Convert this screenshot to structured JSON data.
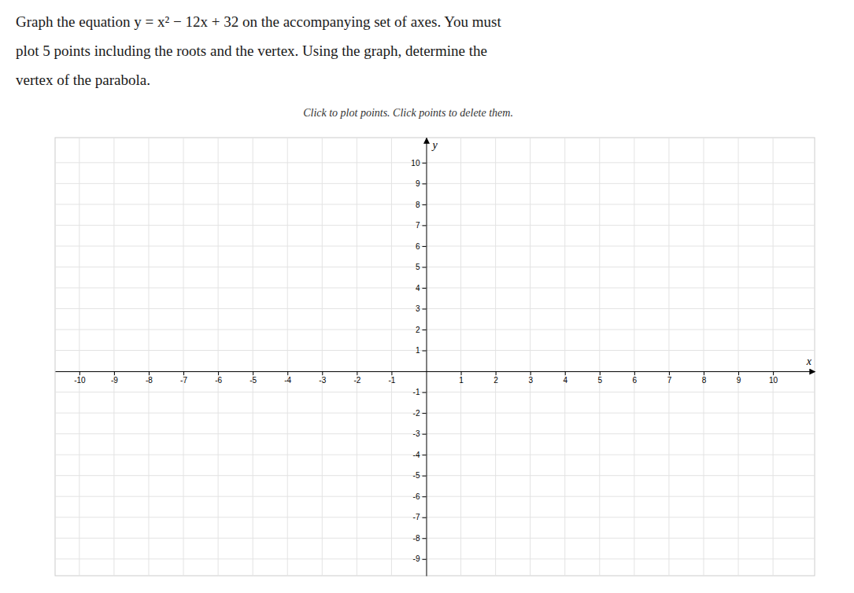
{
  "chart_data": {
    "type": "scatter",
    "title": "Graph the equation y = x² − 12x + 32 on the accompanying set of axes. You must\nplot 5 points including the roots and the vertex. Using the graph, determine the\nvertex of the parabola.",
    "subtitle": "Click to plot points. Click points to delete them.",
    "xlabel": "x",
    "ylabel": "y",
    "xlim": [
      -10.7,
      11.2
    ],
    "ylim": [
      -9.8,
      11.2
    ],
    "xticks": [
      -10,
      -9,
      -8,
      -7,
      -6,
      -5,
      -4,
      -3,
      -2,
      -1,
      1,
      2,
      3,
      4,
      5,
      6,
      7,
      8,
      9,
      10
    ],
    "yticks": [
      -9,
      -8,
      -7,
      -6,
      -5,
      -4,
      -3,
      -2,
      -1,
      1,
      2,
      3,
      4,
      5,
      6,
      7,
      8,
      9,
      10
    ],
    "grid": true
  }
}
